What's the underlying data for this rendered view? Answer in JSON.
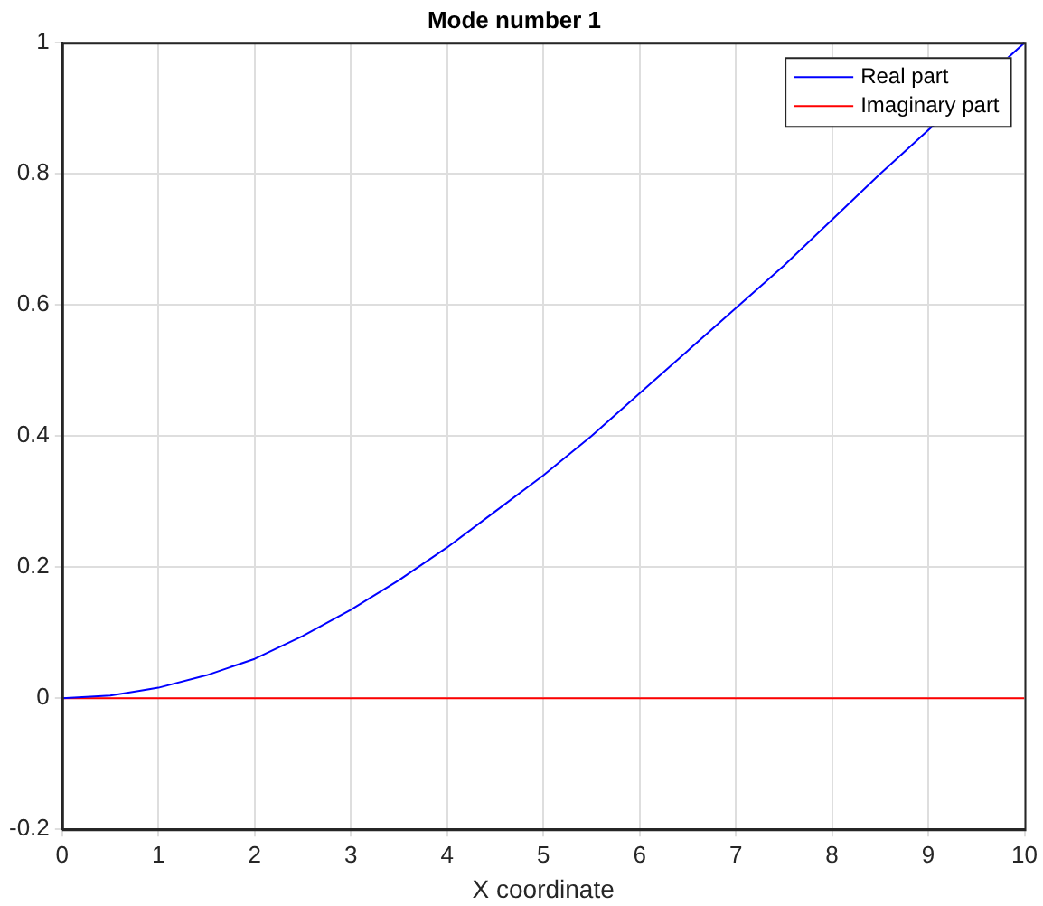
{
  "chart_data": {
    "type": "line",
    "title": "Mode number 1",
    "xlabel": "X coordinate",
    "x": [
      0,
      0.5,
      1,
      1.5,
      2,
      2.5,
      3,
      3.5,
      4,
      4.5,
      5,
      5.5,
      6,
      6.5,
      7,
      7.5,
      8,
      8.5,
      9,
      9.5,
      10
    ],
    "series": [
      {
        "name": "Real part",
        "color": "#0000ff",
        "values": [
          0,
          0.004,
          0.016,
          0.035,
          0.06,
          0.095,
          0.135,
          0.18,
          0.23,
          0.285,
          0.34,
          0.4,
          0.465,
          0.53,
          0.595,
          0.66,
          0.73,
          0.8,
          null,
          null,
          1
        ]
      },
      {
        "name": "Imaginary part",
        "color": "#ff0000",
        "values": [
          0,
          0,
          0,
          0,
          0,
          0,
          0,
          0,
          0,
          0,
          0,
          0,
          0,
          0,
          0,
          0,
          0,
          0,
          0,
          0,
          0
        ]
      }
    ],
    "xlim": [
      0,
      10
    ],
    "xticks": [
      0,
      1,
      2,
      3,
      4,
      5,
      6,
      7,
      8,
      9,
      10
    ],
    "ylim": [
      -0.2,
      1
    ],
    "yticks": [
      -0.2,
      0,
      0.2,
      0.4,
      0.6,
      0.8,
      1
    ],
    "grid": true,
    "legend": "top right",
    "marker": "none",
    "line_style": "solid"
  }
}
